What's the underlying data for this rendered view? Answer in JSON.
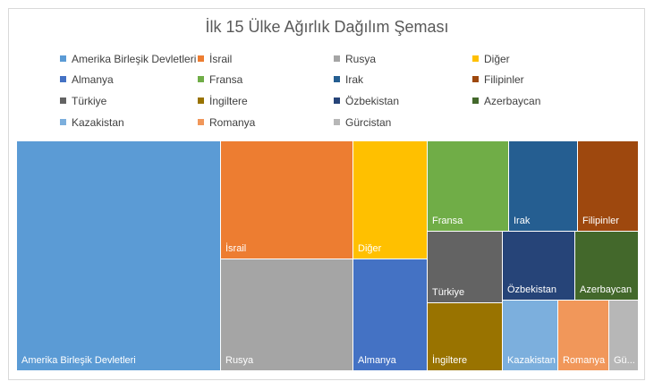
{
  "chart_data": {
    "type": "treemap",
    "title": "İlk 15 Ülke Ağırlık Dağılım Şeması",
    "legend": {
      "placement": "top"
    },
    "categories": [
      "Amerika Birleşik Devletleri",
      "İsrail",
      "Rusya",
      "Diğer",
      "Almanya",
      "Fransa",
      "Irak",
      "Filipinler",
      "Türkiye",
      "İngiltere",
      "Özbekistan",
      "Azerbaycan",
      "Kazakistan",
      "Romanya",
      "Gürcistan"
    ],
    "tile_labels": [
      "Amerika Birleşik Devletleri",
      "İsrail",
      "Rusya",
      "Diğer",
      "Almanya",
      "Fransa",
      "Irak",
      "Filipinler",
      "Türkiye",
      "İngiltere",
      "Özbekistan",
      "Azerbaycan",
      "Kazakistan",
      "Romanya",
      "Gü..."
    ],
    "values": [
      22.5,
      9.2,
      9.0,
      3.5,
      4.0,
      3.4,
      2.6,
      2.2,
      2.2,
      1.7,
      2.1,
      1.9,
      1.5,
      1.3,
      0.9
    ],
    "colors": [
      "#5b9bd5",
      "#ed7d31",
      "#a5a5a5",
      "#ffc000",
      "#4472c4",
      "#70ad47",
      "#255e91",
      "#9e480e",
      "#636363",
      "#997300",
      "#264478",
      "#43682b",
      "#7cafdd",
      "#f1975a",
      "#b7b7b7"
    ]
  }
}
